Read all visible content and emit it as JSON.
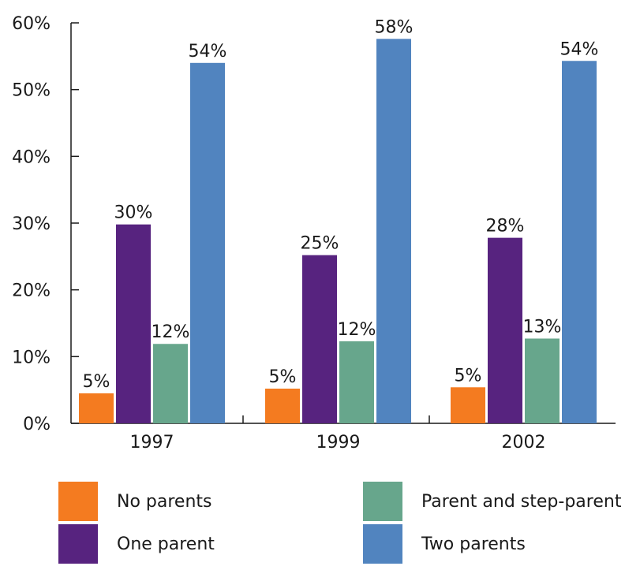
{
  "chart_data": {
    "type": "bar",
    "categories": [
      "1997",
      "1999",
      "2002"
    ],
    "ylim": [
      0,
      60
    ],
    "yticks": [
      "0%",
      "10%",
      "20%",
      "30%",
      "40%",
      "50%",
      "60%"
    ],
    "series": [
      {
        "name": "No parents",
        "color": "#f47b20",
        "values": [
          5,
          5,
          5
        ],
        "labels": [
          "5%",
          "5%",
          "5%"
        ],
        "heights": [
          4.5,
          5.2,
          5.4
        ]
      },
      {
        "name": "One parent",
        "color": "#57237f",
        "values": [
          30,
          25,
          28
        ],
        "labels": [
          "30%",
          "25%",
          "28%"
        ],
        "heights": [
          29.8,
          25.2,
          27.8
        ]
      },
      {
        "name": "Parent and step-parent",
        "color": "#67a68c",
        "values": [
          12,
          12,
          13
        ],
        "labels": [
          "12%",
          "12%",
          "13%"
        ],
        "heights": [
          11.9,
          12.3,
          12.7
        ]
      },
      {
        "name": "Two parents",
        "color": "#5184bf",
        "values": [
          54,
          58,
          54
        ],
        "labels": [
          "54%",
          "58%",
          "54%"
        ],
        "heights": [
          54.0,
          57.6,
          54.3
        ]
      }
    ],
    "grid": false,
    "legend": "bottom"
  }
}
